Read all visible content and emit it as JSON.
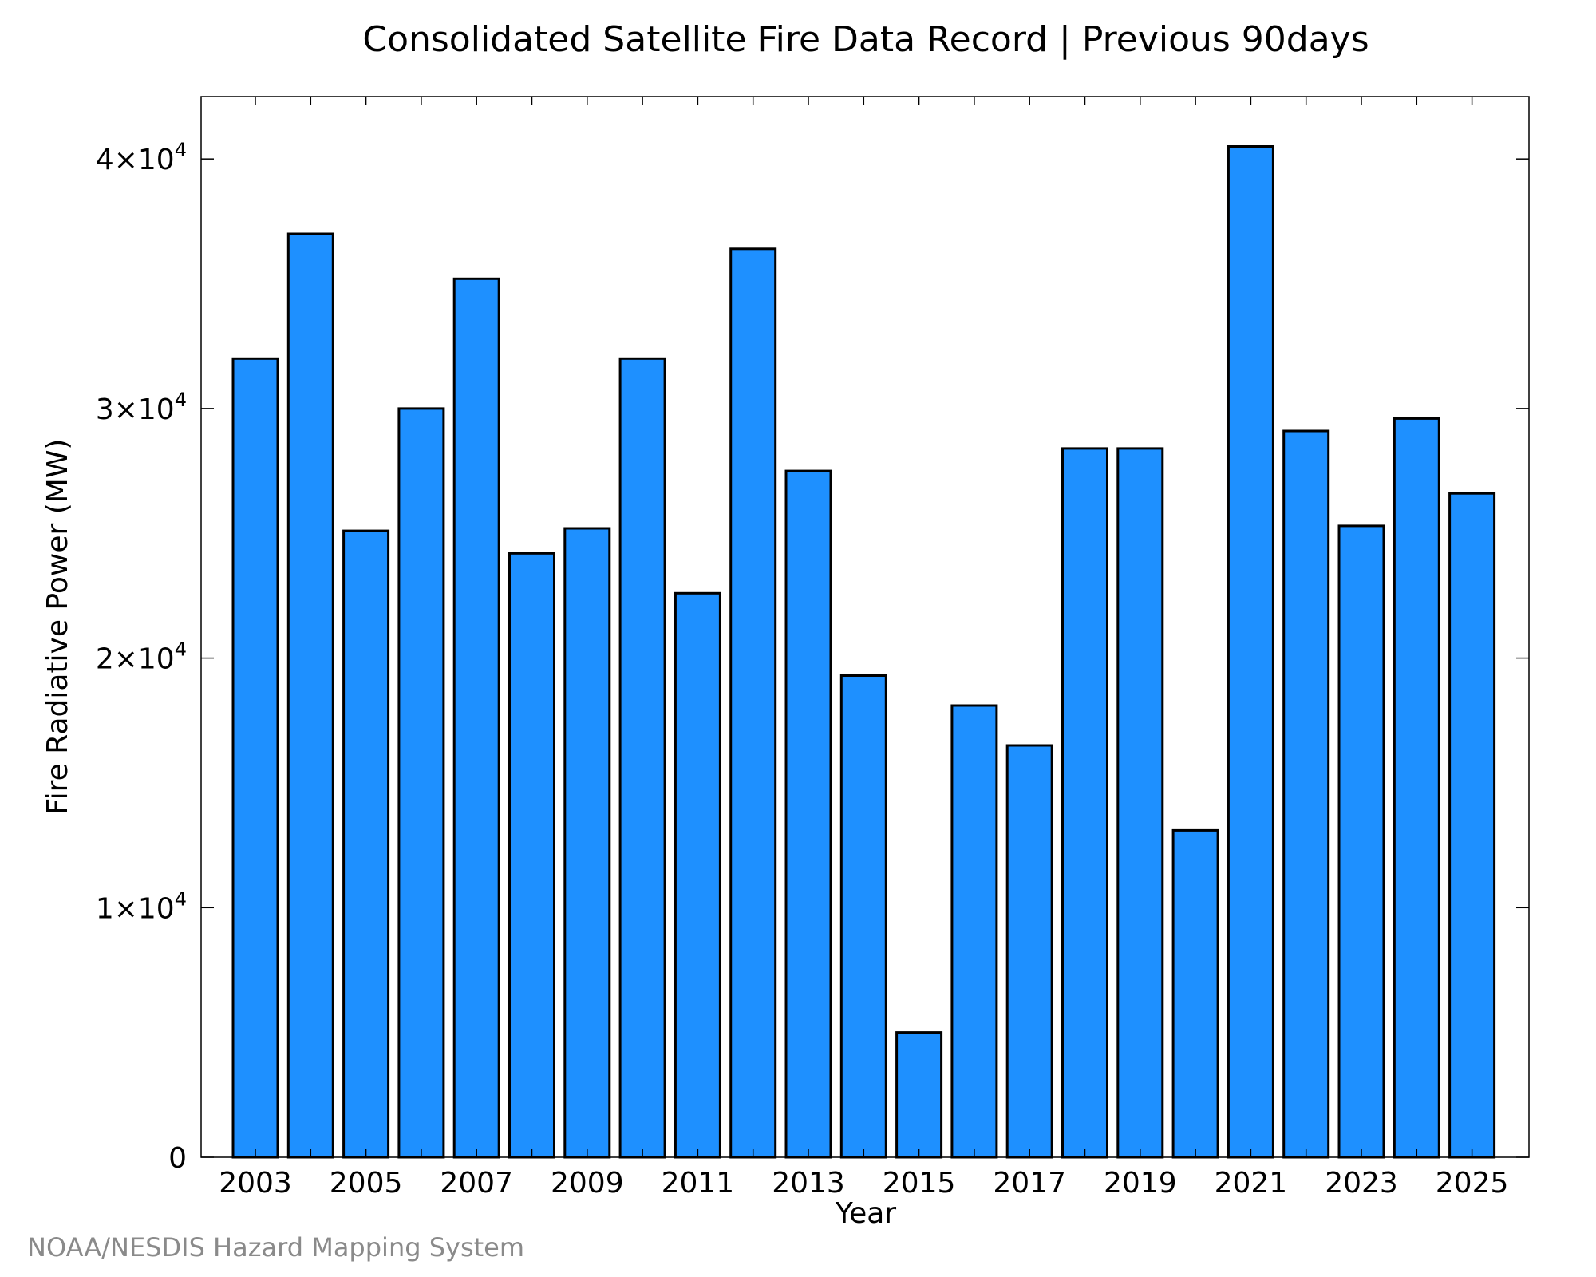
{
  "chart_data": {
    "type": "bar",
    "title": "Consolidated Satellite Fire Data Record | Previous 90days",
    "xlabel": "Year",
    "ylabel": "Fire Radiative Power (MW)",
    "categories": [
      "2003",
      "2004",
      "2005",
      "2006",
      "2007",
      "2008",
      "2009",
      "2010",
      "2011",
      "2012",
      "2013",
      "2014",
      "2015",
      "2016",
      "2017",
      "2018",
      "2019",
      "2020",
      "2021",
      "2022",
      "2023",
      "2024",
      "2025"
    ],
    "values": [
      32000,
      37000,
      25100,
      30000,
      35200,
      24200,
      25200,
      32000,
      22600,
      36400,
      27500,
      19300,
      5000,
      18100,
      16500,
      28400,
      28400,
      13100,
      40500,
      29100,
      25300,
      29600,
      26600
    ],
    "x_tick_labels": [
      "2003",
      "2005",
      "2007",
      "2009",
      "2011",
      "2013",
      "2015",
      "2017",
      "2019",
      "2021",
      "2023",
      "2025"
    ],
    "y_ticks": [
      {
        "value": 0,
        "mantissa": "0",
        "exponent": ""
      },
      {
        "value": 10000,
        "mantissa": "1×10",
        "exponent": "4"
      },
      {
        "value": 20000,
        "mantissa": "2×10",
        "exponent": "4"
      },
      {
        "value": 30000,
        "mantissa": "3×10",
        "exponent": "4"
      },
      {
        "value": 40000,
        "mantissa": "4×10",
        "exponent": "4"
      }
    ],
    "ylim": [
      0,
      42500
    ],
    "bar_color": "#1e90ff",
    "grid": false,
    "legend": "none"
  },
  "credit": "NOAA/NESDIS Hazard Mapping System"
}
